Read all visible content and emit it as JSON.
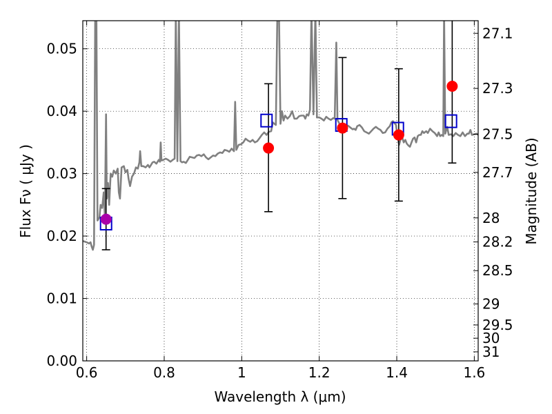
{
  "chart_data": {
    "type": "scatter",
    "xlabel": "Wavelength  λ (μm)",
    "ylabel": "Flux  Fν  ( μJy )",
    "ylabel_right": "Magnitude (AB)",
    "xlim": [
      0.59,
      1.61
    ],
    "ylim": [
      0.0,
      0.0545
    ],
    "grid": true,
    "x_ticks": [
      {
        "value": 0.6,
        "label": "0.6"
      },
      {
        "value": 0.8,
        "label": "0.8"
      },
      {
        "value": 1.0,
        "label": "1"
      },
      {
        "value": 1.2,
        "label": "1.2"
      },
      {
        "value": 1.4,
        "label": "1.4"
      },
      {
        "value": 1.6,
        "label": "1.6"
      }
    ],
    "y_ticks": [
      {
        "value": 0.0,
        "label": "0.00"
      },
      {
        "value": 0.01,
        "label": "0.01"
      },
      {
        "value": 0.02,
        "label": "0.02"
      },
      {
        "value": 0.03,
        "label": "0.03"
      },
      {
        "value": 0.04,
        "label": "0.04"
      },
      {
        "value": 0.05,
        "label": "0.05"
      }
    ],
    "mag_ticks": [
      "27.1",
      "27.3",
      "27.5",
      "27.7",
      "28",
      "28.2",
      "28.5",
      "29",
      "29.5",
      "30",
      "31"
    ],
    "model_spectrum": {
      "color": "#808080",
      "points": [
        [
          0.59,
          0.0192
        ],
        [
          0.6,
          0.019
        ],
        [
          0.606,
          0.0188
        ],
        [
          0.61,
          0.019
        ],
        [
          0.613,
          0.0183
        ],
        [
          0.616,
          0.0178
        ],
        [
          0.619,
          0.0186
        ],
        [
          0.622,
          0.056
        ],
        [
          0.625,
          0.056
        ],
        [
          0.628,
          0.0225
        ],
        [
          0.633,
          0.023
        ],
        [
          0.636,
          0.025
        ],
        [
          0.64,
          0.0245
        ],
        [
          0.644,
          0.027
        ],
        [
          0.647,
          0.023
        ],
        [
          0.65,
          0.0395
        ],
        [
          0.652,
          0.026
        ],
        [
          0.655,
          0.0285
        ],
        [
          0.658,
          0.025
        ],
        [
          0.662,
          0.03
        ],
        [
          0.666,
          0.0295
        ],
        [
          0.67,
          0.0305
        ],
        [
          0.675,
          0.03
        ],
        [
          0.68,
          0.0308
        ],
        [
          0.683,
          0.027
        ],
        [
          0.686,
          0.026
        ],
        [
          0.69,
          0.031
        ],
        [
          0.696,
          0.0312
        ],
        [
          0.7,
          0.0302
        ],
        [
          0.705,
          0.0306
        ],
        [
          0.708,
          0.0292
        ],
        [
          0.712,
          0.028
        ],
        [
          0.717,
          0.0295
        ],
        [
          0.722,
          0.03
        ],
        [
          0.727,
          0.031
        ],
        [
          0.732,
          0.0308
        ],
        [
          0.736,
          0.0318
        ],
        [
          0.738,
          0.0336
        ],
        [
          0.741,
          0.0312
        ],
        [
          0.746,
          0.0312
        ],
        [
          0.752,
          0.031
        ],
        [
          0.758,
          0.0314
        ],
        [
          0.762,
          0.031
        ],
        [
          0.766,
          0.0314
        ],
        [
          0.77,
          0.0318
        ],
        [
          0.774,
          0.0319
        ],
        [
          0.78,
          0.0316
        ],
        [
          0.786,
          0.0322
        ],
        [
          0.789,
          0.0319
        ],
        [
          0.791,
          0.035
        ],
        [
          0.793,
          0.0321
        ],
        [
          0.798,
          0.0322
        ],
        [
          0.804,
          0.0324
        ],
        [
          0.81,
          0.0322
        ],
        [
          0.816,
          0.0319
        ],
        [
          0.822,
          0.0322
        ],
        [
          0.827,
          0.0324
        ],
        [
          0.83,
          0.056
        ],
        [
          0.834,
          0.032
        ],
        [
          0.838,
          0.056
        ],
        [
          0.842,
          0.032
        ],
        [
          0.846,
          0.0318
        ],
        [
          0.85,
          0.0319
        ],
        [
          0.856,
          0.0317
        ],
        [
          0.86,
          0.0321
        ],
        [
          0.866,
          0.0327
        ],
        [
          0.872,
          0.0326
        ],
        [
          0.878,
          0.0325
        ],
        [
          0.884,
          0.0329
        ],
        [
          0.89,
          0.033
        ],
        [
          0.896,
          0.0328
        ],
        [
          0.902,
          0.0331
        ],
        [
          0.908,
          0.0326
        ],
        [
          0.914,
          0.0323
        ],
        [
          0.92,
          0.0326
        ],
        [
          0.926,
          0.0329
        ],
        [
          0.932,
          0.0328
        ],
        [
          0.938,
          0.0332
        ],
        [
          0.944,
          0.0334
        ],
        [
          0.95,
          0.0333
        ],
        [
          0.956,
          0.0338
        ],
        [
          0.962,
          0.0337
        ],
        [
          0.968,
          0.0335
        ],
        [
          0.974,
          0.034
        ],
        [
          0.98,
          0.0336
        ],
        [
          0.983,
          0.0415
        ],
        [
          0.986,
          0.0338
        ],
        [
          0.992,
          0.0346
        ],
        [
          0.998,
          0.0347
        ],
        [
          1.004,
          0.035
        ],
        [
          1.01,
          0.0356
        ],
        [
          1.016,
          0.0353
        ],
        [
          1.022,
          0.0351
        ],
        [
          1.028,
          0.0354
        ],
        [
          1.034,
          0.035
        ],
        [
          1.04,
          0.0352
        ],
        [
          1.046,
          0.0357
        ],
        [
          1.052,
          0.0362
        ],
        [
          1.058,
          0.0366
        ],
        [
          1.064,
          0.0362
        ],
        [
          1.07,
          0.0367
        ],
        [
          1.076,
          0.0368
        ],
        [
          1.08,
          0.0382
        ],
        [
          1.084,
          0.038
        ],
        [
          1.088,
          0.0378
        ],
        [
          1.092,
          0.056
        ],
        [
          1.096,
          0.056
        ],
        [
          1.1,
          0.038
        ],
        [
          1.104,
          0.04
        ],
        [
          1.108,
          0.0385
        ],
        [
          1.112,
          0.0393
        ],
        [
          1.118,
          0.0388
        ],
        [
          1.124,
          0.0392
        ],
        [
          1.13,
          0.04
        ],
        [
          1.136,
          0.0388
        ],
        [
          1.142,
          0.0388
        ],
        [
          1.148,
          0.0392
        ],
        [
          1.154,
          0.0393
        ],
        [
          1.16,
          0.0393
        ],
        [
          1.164,
          0.0388
        ],
        [
          1.168,
          0.0395
        ],
        [
          1.172,
          0.0393
        ],
        [
          1.176,
          0.0402
        ],
        [
          1.18,
          0.056
        ],
        [
          1.185,
          0.0395
        ],
        [
          1.19,
          0.056
        ],
        [
          1.194,
          0.039
        ],
        [
          1.2,
          0.039
        ],
        [
          1.206,
          0.0388
        ],
        [
          1.212,
          0.0385
        ],
        [
          1.218,
          0.0391
        ],
        [
          1.224,
          0.0388
        ],
        [
          1.23,
          0.0386
        ],
        [
          1.236,
          0.0389
        ],
        [
          1.24,
          0.0388
        ],
        [
          1.244,
          0.051
        ],
        [
          1.247,
          0.0386
        ],
        [
          1.252,
          0.038
        ],
        [
          1.256,
          0.0378
        ],
        [
          1.262,
          0.038
        ],
        [
          1.268,
          0.0376
        ],
        [
          1.274,
          0.0377
        ],
        [
          1.28,
          0.0374
        ],
        [
          1.286,
          0.0371
        ],
        [
          1.29,
          0.0372
        ],
        [
          1.294,
          0.037
        ],
        [
          1.298,
          0.0376
        ],
        [
          1.304,
          0.0378
        ],
        [
          1.31,
          0.0374
        ],
        [
          1.316,
          0.0368
        ],
        [
          1.322,
          0.0366
        ],
        [
          1.328,
          0.0364
        ],
        [
          1.334,
          0.0368
        ],
        [
          1.34,
          0.0372
        ],
        [
          1.346,
          0.0375
        ],
        [
          1.352,
          0.0372
        ],
        [
          1.358,
          0.037
        ],
        [
          1.364,
          0.0365
        ],
        [
          1.37,
          0.0366
        ],
        [
          1.376,
          0.0372
        ],
        [
          1.382,
          0.0376
        ],
        [
          1.386,
          0.0382
        ],
        [
          1.39,
          0.0384
        ],
        [
          1.394,
          0.0381
        ],
        [
          1.398,
          0.0378
        ],
        [
          1.402,
          0.0358
        ],
        [
          1.406,
          0.0346
        ],
        [
          1.41,
          0.0355
        ],
        [
          1.414,
          0.0358
        ],
        [
          1.418,
          0.035
        ],
        [
          1.422,
          0.0354
        ],
        [
          1.426,
          0.0348
        ],
        [
          1.43,
          0.0345
        ],
        [
          1.434,
          0.0343
        ],
        [
          1.438,
          0.035
        ],
        [
          1.442,
          0.0356
        ],
        [
          1.446,
          0.0358
        ],
        [
          1.45,
          0.035
        ],
        [
          1.454,
          0.036
        ],
        [
          1.458,
          0.0362
        ],
        [
          1.462,
          0.0362
        ],
        [
          1.466,
          0.0368
        ],
        [
          1.47,
          0.0365
        ],
        [
          1.476,
          0.0368
        ],
        [
          1.48,
          0.0365
        ],
        [
          1.486,
          0.0372
        ],
        [
          1.492,
          0.0368
        ],
        [
          1.498,
          0.0365
        ],
        [
          1.504,
          0.036
        ],
        [
          1.508,
          0.0366
        ],
        [
          1.512,
          0.036
        ],
        [
          1.516,
          0.0362
        ],
        [
          1.52,
          0.036
        ],
        [
          1.522,
          0.056
        ],
        [
          1.525,
          0.0364
        ],
        [
          1.53,
          0.0375
        ],
        [
          1.534,
          0.0362
        ],
        [
          1.54,
          0.0363
        ],
        [
          1.546,
          0.036
        ],
        [
          1.552,
          0.0365
        ],
        [
          1.558,
          0.0362
        ],
        [
          1.564,
          0.036
        ],
        [
          1.57,
          0.0366
        ],
        [
          1.576,
          0.036
        ],
        [
          1.582,
          0.0364
        ],
        [
          1.586,
          0.0364
        ],
        [
          1.59,
          0.037
        ],
        [
          1.594,
          0.0362
        ],
        [
          1.6,
          0.0363
        ],
        [
          1.606,
          0.0364
        ],
        [
          1.61,
          0.0362
        ]
      ]
    },
    "model_photometry": {
      "marker": "open-square",
      "color": "#0000cc",
      "x": [
        0.65,
        1.064,
        1.257,
        1.403,
        1.54
      ],
      "y": [
        0.022,
        0.0385,
        0.0378,
        0.0372,
        0.0384
      ]
    },
    "observed_photometry": {
      "marker": "circle",
      "colors": [
        "#aa00aa",
        "#ff0000",
        "#ff0000",
        "#ff0000",
        "#ff0000"
      ],
      "x": [
        0.65,
        1.069,
        1.26,
        1.405,
        1.543
      ],
      "y": [
        0.0227,
        0.0341,
        0.0373,
        0.0362,
        0.044
      ],
      "err_low": [
        0.0178,
        0.0239,
        0.026,
        0.0256,
        0.0317
      ],
      "err_high": [
        0.0276,
        0.0444,
        0.0486,
        0.0468,
        0.056
      ]
    }
  }
}
